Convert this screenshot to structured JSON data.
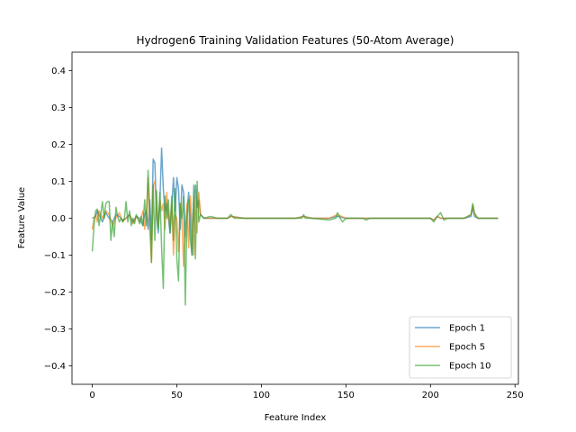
{
  "chart_data": {
    "type": "line",
    "title": "Hydrogen6 Training Validation Features (50-Atom Average)",
    "xlabel": "Feature Index",
    "ylabel": "Feature Value",
    "xlim": [
      -12,
      252
    ],
    "ylim": [
      -0.45,
      0.45
    ],
    "xticks": [
      0,
      50,
      100,
      150,
      200,
      250
    ],
    "xtick_labels": [
      "0",
      "50",
      "100",
      "150",
      "200",
      "250"
    ],
    "yticks": [
      -0.4,
      -0.3,
      -0.2,
      -0.1,
      0.0,
      0.1,
      0.2,
      0.3,
      0.4
    ],
    "ytick_labels": [
      "−0.4",
      "−0.3",
      "−0.2",
      "−0.1",
      "0.0",
      "0.1",
      "0.2",
      "0.3",
      "0.4"
    ],
    "grid": false,
    "legend_position": "lower-right",
    "series": [
      {
        "name": "Epoch 1",
        "color": "#1f77b4",
        "points": [
          [
            0,
            0.0
          ],
          [
            2,
            0.005
          ],
          [
            3,
            0.02
          ],
          [
            4,
            0.01
          ],
          [
            6,
            -0.01
          ],
          [
            8,
            0.015
          ],
          [
            10,
            0.0
          ],
          [
            12,
            -0.01
          ],
          [
            14,
            0.01
          ],
          [
            16,
            0.005
          ],
          [
            18,
            -0.005
          ],
          [
            20,
            0.0
          ],
          [
            22,
            0.01
          ],
          [
            24,
            -0.01
          ],
          [
            26,
            0.005
          ],
          [
            28,
            0.0
          ],
          [
            30,
            -0.02
          ],
          [
            31,
            0.01
          ],
          [
            32,
            0.02
          ],
          [
            33,
            -0.03
          ],
          [
            34,
            0.05
          ],
          [
            35,
            -0.06
          ],
          [
            36,
            0.16
          ],
          [
            37,
            0.15
          ],
          [
            38,
            0.01
          ],
          [
            39,
            -0.04
          ],
          [
            40,
            0.05
          ],
          [
            41,
            0.19
          ],
          [
            42,
            0.08
          ],
          [
            43,
            0.02
          ],
          [
            44,
            0.04
          ],
          [
            45,
            0.0
          ],
          [
            46,
            -0.04
          ],
          [
            47,
            0.03
          ],
          [
            48,
            0.11
          ],
          [
            49,
            0.02
          ],
          [
            50,
            0.11
          ],
          [
            51,
            0.08
          ],
          [
            52,
            -0.03
          ],
          [
            53,
            0.09
          ],
          [
            54,
            0.07
          ],
          [
            55,
            -0.05
          ],
          [
            56,
            0.02
          ],
          [
            57,
            0.07
          ],
          [
            58,
            0.01
          ],
          [
            59,
            -0.1
          ],
          [
            60,
            0.04
          ],
          [
            61,
            0.09
          ],
          [
            62,
            0.03
          ],
          [
            63,
            0.05
          ],
          [
            64,
            0.01
          ],
          [
            66,
            0.0
          ],
          [
            70,
            0.0
          ],
          [
            80,
            0.0
          ],
          [
            82,
            0.005
          ],
          [
            90,
            0.0
          ],
          [
            100,
            0.0
          ],
          [
            110,
            0.0
          ],
          [
            120,
            0.0
          ],
          [
            125,
            0.005
          ],
          [
            130,
            0.0
          ],
          [
            140,
            0.0
          ],
          [
            145,
            0.005
          ],
          [
            150,
            0.0
          ],
          [
            160,
            0.0
          ],
          [
            170,
            0.0
          ],
          [
            180,
            0.0
          ],
          [
            190,
            0.0
          ],
          [
            200,
            0.0
          ],
          [
            202,
            -0.005
          ],
          [
            204,
            0.005
          ],
          [
            206,
            0.0
          ],
          [
            210,
            0.0
          ],
          [
            220,
            0.0
          ],
          [
            224,
            0.005
          ],
          [
            225,
            0.03
          ],
          [
            226,
            0.005
          ],
          [
            228,
            0.0
          ],
          [
            235,
            0.0
          ],
          [
            240,
            0.0
          ]
        ]
      },
      {
        "name": "Epoch 5",
        "color": "#ff7f0e",
        "points": [
          [
            0,
            -0.03
          ],
          [
            1,
            0.0
          ],
          [
            2,
            0.01
          ],
          [
            3,
            -0.01
          ],
          [
            4,
            0.02
          ],
          [
            6,
            0.0
          ],
          [
            8,
            0.02
          ],
          [
            10,
            0.01
          ],
          [
            12,
            -0.02
          ],
          [
            14,
            0.0
          ],
          [
            16,
            0.015
          ],
          [
            18,
            -0.01
          ],
          [
            20,
            0.0
          ],
          [
            22,
            0.01
          ],
          [
            24,
            -0.015
          ],
          [
            26,
            0.005
          ],
          [
            28,
            -0.01
          ],
          [
            30,
            0.02
          ],
          [
            31,
            -0.03
          ],
          [
            32,
            0.01
          ],
          [
            33,
            0.11
          ],
          [
            34,
            -0.03
          ],
          [
            35,
            -0.12
          ],
          [
            36,
            0.09
          ],
          [
            37,
            0.1
          ],
          [
            38,
            0.02
          ],
          [
            39,
            -0.02
          ],
          [
            40,
            0.05
          ],
          [
            41,
            0.02
          ],
          [
            42,
            0.04
          ],
          [
            43,
            -0.03
          ],
          [
            44,
            0.07
          ],
          [
            45,
            0.01
          ],
          [
            46,
            -0.02
          ],
          [
            47,
            0.04
          ],
          [
            48,
            -0.1
          ],
          [
            49,
            0.01
          ],
          [
            50,
            0.0
          ],
          [
            51,
            -0.09
          ],
          [
            52,
            0.04
          ],
          [
            53,
            0.0
          ],
          [
            54,
            -0.13
          ],
          [
            55,
            -0.05
          ],
          [
            56,
            0.04
          ],
          [
            57,
            -0.08
          ],
          [
            58,
            0.06
          ],
          [
            59,
            -0.02
          ],
          [
            60,
            -0.1
          ],
          [
            61,
            0.06
          ],
          [
            62,
            -0.04
          ],
          [
            63,
            0.07
          ],
          [
            64,
            0.01
          ],
          [
            66,
            0.0
          ],
          [
            70,
            0.0
          ],
          [
            80,
            0.0
          ],
          [
            82,
            0.005
          ],
          [
            90,
            0.0
          ],
          [
            100,
            0.0
          ],
          [
            110,
            0.0
          ],
          [
            120,
            0.0
          ],
          [
            125,
            0.005
          ],
          [
            130,
            0.0
          ],
          [
            140,
            0.0
          ],
          [
            145,
            0.01
          ],
          [
            150,
            0.0
          ],
          [
            160,
            0.0
          ],
          [
            170,
            0.0
          ],
          [
            180,
            0.0
          ],
          [
            190,
            0.0
          ],
          [
            200,
            0.0
          ],
          [
            202,
            -0.005
          ],
          [
            204,
            0.005
          ],
          [
            206,
            0.0
          ],
          [
            210,
            0.0
          ],
          [
            220,
            0.0
          ],
          [
            224,
            0.01
          ],
          [
            225,
            0.035
          ],
          [
            226,
            0.01
          ],
          [
            228,
            0.0
          ],
          [
            235,
            0.0
          ],
          [
            240,
            0.0
          ]
        ]
      },
      {
        "name": "Epoch 10",
        "color": "#2ca02c",
        "points": [
          [
            0,
            -0.09
          ],
          [
            1,
            -0.02
          ],
          [
            2,
            0.02
          ],
          [
            3,
            0.025
          ],
          [
            4,
            -0.02
          ],
          [
            5,
            0.01
          ],
          [
            6,
            0.045
          ],
          [
            7,
            0.0
          ],
          [
            8,
            0.04
          ],
          [
            9,
            0.045
          ],
          [
            10,
            0.045
          ],
          [
            11,
            -0.06
          ],
          [
            12,
            -0.01
          ],
          [
            13,
            -0.05
          ],
          [
            14,
            0.03
          ],
          [
            15,
            0.005
          ],
          [
            16,
            -0.01
          ],
          [
            17,
            0.0
          ],
          [
            18,
            -0.01
          ],
          [
            19,
            0.0
          ],
          [
            20,
            0.045
          ],
          [
            21,
            -0.01
          ],
          [
            22,
            0.02
          ],
          [
            23,
            -0.02
          ],
          [
            24,
            0.0
          ],
          [
            25,
            -0.015
          ],
          [
            26,
            0.01
          ],
          [
            27,
            0.0
          ],
          [
            28,
            -0.015
          ],
          [
            29,
            0.005
          ],
          [
            30,
            -0.02
          ],
          [
            31,
            0.05
          ],
          [
            32,
            -0.02
          ],
          [
            33,
            0.13
          ],
          [
            34,
            0.02
          ],
          [
            35,
            -0.12
          ],
          [
            36,
            0.09
          ],
          [
            37,
            -0.06
          ],
          [
            38,
            0.075
          ],
          [
            39,
            -0.03
          ],
          [
            40,
            0.07
          ],
          [
            41,
            -0.08
          ],
          [
            42,
            -0.19
          ],
          [
            43,
            0.06
          ],
          [
            44,
            0.0
          ],
          [
            45,
            0.05
          ],
          [
            46,
            -0.04
          ],
          [
            47,
            0.06
          ],
          [
            48,
            -0.06
          ],
          [
            49,
            0.08
          ],
          [
            50,
            -0.11
          ],
          [
            51,
            -0.17
          ],
          [
            52,
            0.04
          ],
          [
            53,
            0.0
          ],
          [
            54,
            0.06
          ],
          [
            55,
            -0.235
          ],
          [
            56,
            0.0
          ],
          [
            57,
            0.05
          ],
          [
            58,
            -0.06
          ],
          [
            59,
            -0.1
          ],
          [
            60,
            0.09
          ],
          [
            61,
            -0.11
          ],
          [
            62,
            0.1
          ],
          [
            63,
            -0.01
          ],
          [
            64,
            0.01
          ],
          [
            66,
            0.0
          ],
          [
            70,
            0.005
          ],
          [
            74,
            0.0
          ],
          [
            80,
            0.0
          ],
          [
            82,
            0.01
          ],
          [
            84,
            0.0
          ],
          [
            90,
            0.0
          ],
          [
            100,
            0.0
          ],
          [
            110,
            0.0
          ],
          [
            120,
            0.0
          ],
          [
            124,
            0.0
          ],
          [
            125,
            0.01
          ],
          [
            126,
            0.0
          ],
          [
            130,
            0.0
          ],
          [
            140,
            -0.005
          ],
          [
            144,
            0.0
          ],
          [
            145,
            0.015
          ],
          [
            146,
            0.005
          ],
          [
            148,
            -0.01
          ],
          [
            150,
            0.0
          ],
          [
            160,
            0.0
          ],
          [
            162,
            -0.005
          ],
          [
            164,
            0.0
          ],
          [
            170,
            0.0
          ],
          [
            180,
            0.0
          ],
          [
            190,
            0.0
          ],
          [
            200,
            0.0
          ],
          [
            202,
            -0.01
          ],
          [
            204,
            0.005
          ],
          [
            206,
            0.015
          ],
          [
            208,
            -0.005
          ],
          [
            210,
            0.0
          ],
          [
            220,
            0.0
          ],
          [
            224,
            0.01
          ],
          [
            225,
            0.04
          ],
          [
            226,
            0.015
          ],
          [
            228,
            0.0
          ],
          [
            235,
            0.0
          ],
          [
            240,
            0.0
          ]
        ]
      }
    ]
  }
}
